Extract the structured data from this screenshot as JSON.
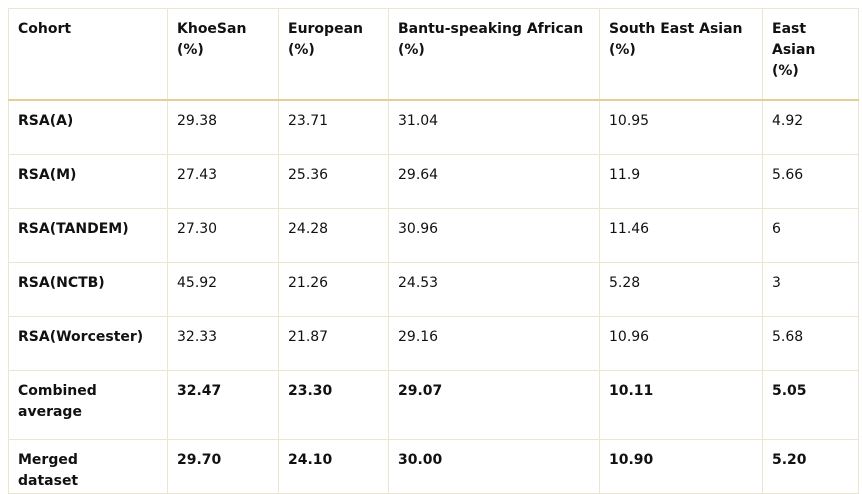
{
  "table": {
    "header": [
      "Cohort",
      "KhoeSan (%)",
      "European (%)",
      "Bantu-speaking African (%)",
      "South East Asian (%)",
      "East Asian (%)"
    ],
    "rows": [
      [
        "RSA(A)",
        "29.38",
        "23.71",
        "31.04",
        "10.95",
        "4.92"
      ],
      [
        "RSA(M)",
        "27.43",
        "25.36",
        "29.64",
        "11.9",
        "5.66"
      ],
      [
        "RSA(TANDEM)",
        "27.30",
        "24.28",
        "30.96",
        "11.46",
        "6"
      ],
      [
        "RSA(NCTB)",
        "45.92",
        "21.26",
        "24.53",
        "5.28",
        "3"
      ],
      [
        "RSA(Worcester)",
        "32.33",
        "21.87",
        "29.16",
        "10.96",
        "5.68"
      ],
      [
        "Combined average",
        "32.47",
        "23.30",
        "29.07",
        "10.11",
        "5.05"
      ],
      [
        "Merged dataset",
        "29.70",
        "24.10",
        "30.00",
        "10.90",
        "5.20"
      ]
    ]
  }
}
